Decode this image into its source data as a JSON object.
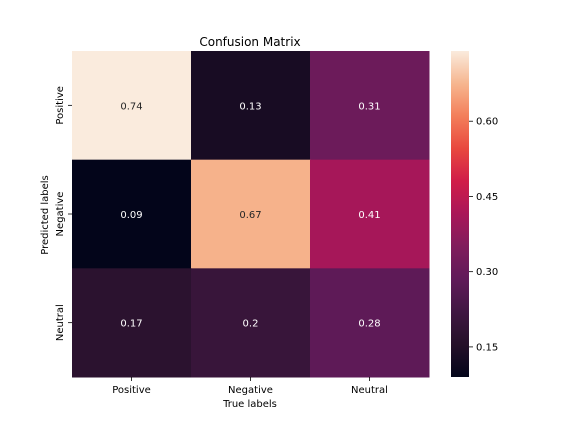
{
  "chart_data": {
    "type": "heatmap",
    "title": "Confusion Matrix",
    "xlabel": "True labels",
    "ylabel": "Predicted labels",
    "x_categories": [
      "Positive",
      "Negative",
      "Neutral"
    ],
    "y_categories": [
      "Positive",
      "Negative",
      "Neutral"
    ],
    "values": [
      [
        0.74,
        0.13,
        0.31
      ],
      [
        0.09,
        0.67,
        0.41
      ],
      [
        0.17,
        0.2,
        0.28
      ]
    ],
    "value_labels": [
      [
        "0.74",
        "0.13",
        "0.31"
      ],
      [
        "0.09",
        "0.67",
        "0.41"
      ],
      [
        "0.17",
        "0.2",
        "0.28"
      ]
    ],
    "colorbar": {
      "range": [
        0.09,
        0.74
      ],
      "ticks": [
        0.15,
        0.3,
        0.45,
        0.6
      ],
      "tick_labels": [
        "0.15",
        "0.30",
        "0.45",
        "0.60"
      ]
    },
    "colormap": "rocket",
    "grid": false,
    "legend": "colorbar-right"
  }
}
